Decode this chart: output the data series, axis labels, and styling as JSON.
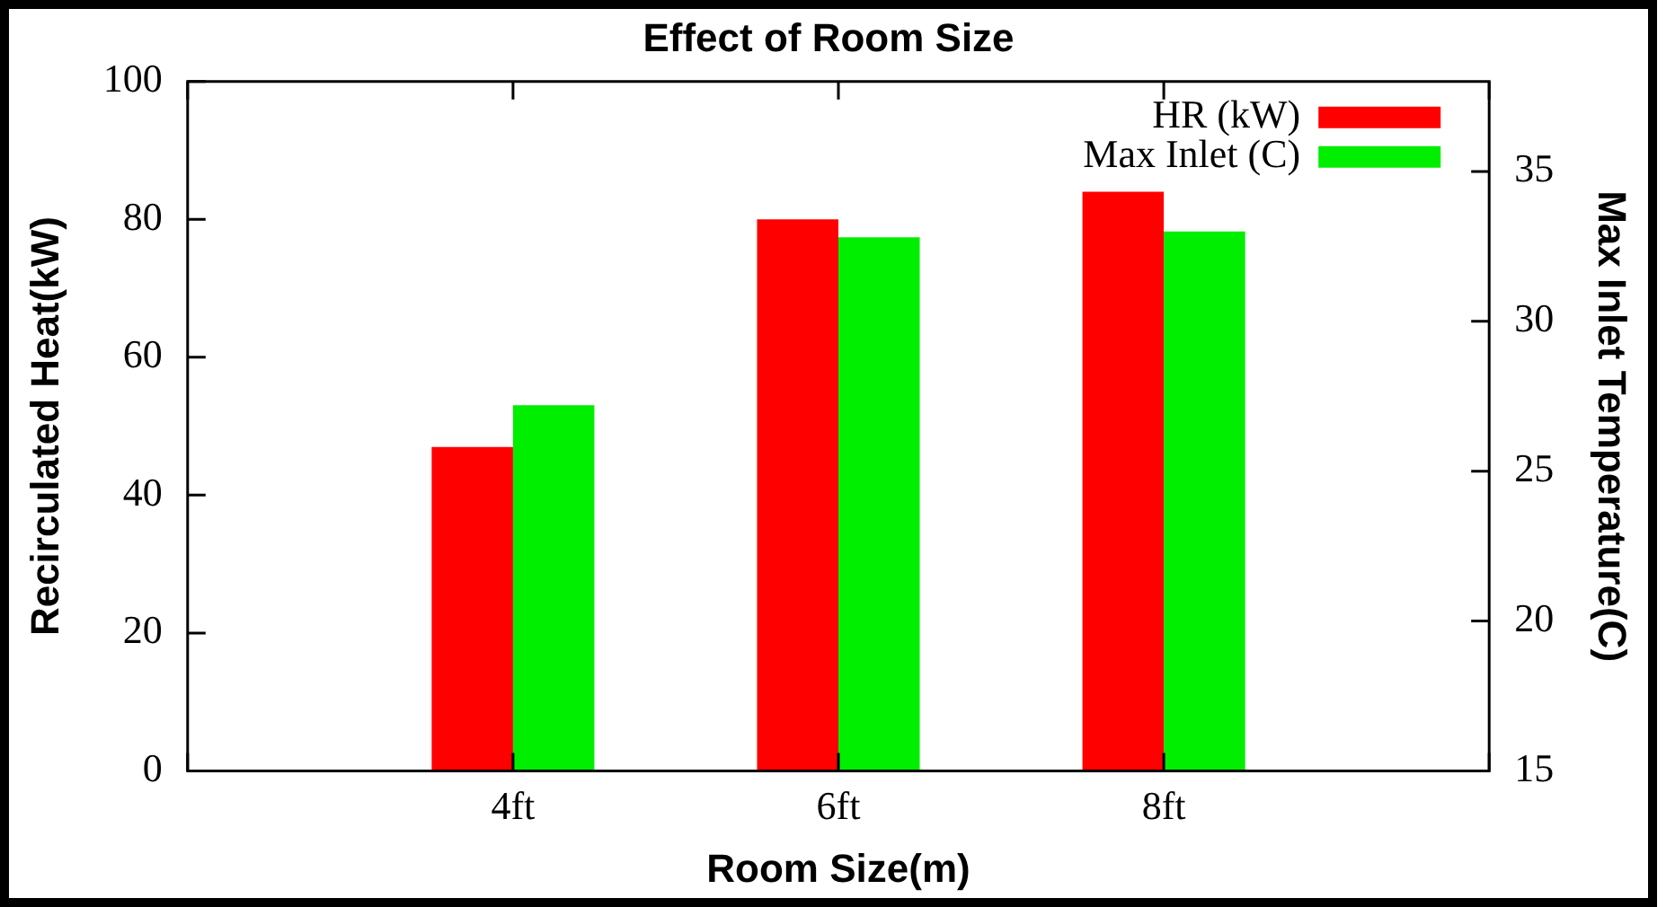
{
  "chart_data": {
    "type": "bar",
    "title": "Effect of Room Size",
    "xlabel": "Room Size(m)",
    "ylabel": "Recirculated Heat(kW)",
    "y2label": "Max Inlet Temperature(C)",
    "categories": [
      null,
      "4ft",
      "6ft",
      "8ft",
      null
    ],
    "series": [
      {
        "name": "HR (kW)",
        "color": "#ff0000",
        "values": [
          null,
          47,
          80,
          84,
          null
        ]
      },
      {
        "name": "Max Inlet (C)",
        "color": "#00ee00",
        "axis": "y2",
        "values": [
          null,
          27.2,
          32.8,
          33.0,
          null
        ]
      }
    ],
    "ylim": [
      0,
      100
    ],
    "yticks": [
      0,
      20,
      40,
      60,
      80,
      100
    ],
    "y2lim": [
      15,
      38
    ],
    "y2ticks": [
      15,
      20,
      25,
      30,
      35
    ],
    "grid": false,
    "legend": "top right"
  }
}
